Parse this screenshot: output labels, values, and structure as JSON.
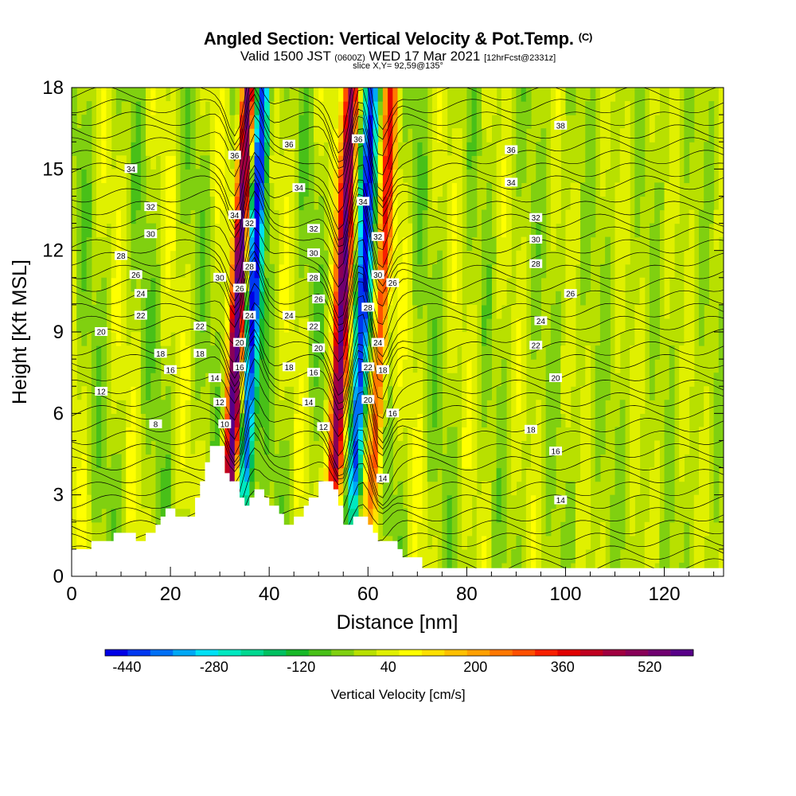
{
  "header": {
    "title": "Angled Section: Vertical Velocity & Pot.Temp.",
    "title_suffix": "(C)",
    "valid_prefix": "Valid 1500 JST",
    "valid_zulu": "(0600Z)",
    "valid_date": "WED 17 Mar 2021",
    "forecast": "[12hrFcst@2331z]",
    "slice": "slice X,Y= 92,59@135°"
  },
  "chart_data": {
    "type": "heatmap",
    "xlabel": "Distance [nm]",
    "ylabel": "Height [Kft MSL]",
    "xlim": [
      0,
      132
    ],
    "ylim": [
      0,
      18
    ],
    "x_ticks": [
      0,
      20,
      40,
      60,
      80,
      100,
      120
    ],
    "y_ticks": [
      0,
      3,
      6,
      9,
      12,
      15,
      18
    ],
    "colorbar": {
      "label": "Vertical Velocity [cm/s]",
      "range": [
        -480,
        600
      ],
      "tick_labels": [
        -440,
        -280,
        -120,
        40,
        200,
        360,
        520
      ],
      "colors": [
        "#0000e6",
        "#0038f0",
        "#0070f5",
        "#00a8f5",
        "#00e0f5",
        "#00e8c0",
        "#00d890",
        "#00c060",
        "#18b828",
        "#48c018",
        "#80d010",
        "#b8e000",
        "#e0f000",
        "#ffff00",
        "#ffe000",
        "#ffc000",
        "#ffa000",
        "#ff7800",
        "#ff5000",
        "#f82000",
        "#e00000",
        "#c00020",
        "#a00040",
        "#880058",
        "#700070",
        "#580088"
      ]
    },
    "updraft_cores_nm": [
      33.5,
      54.5,
      62.5
    ],
    "downdraft_cores_nm": [
      36.5,
      58.5
    ],
    "terrain_height_kft": [
      [
        0,
        1.0
      ],
      [
        4,
        1.0
      ],
      [
        4,
        1.3
      ],
      [
        8.5,
        1.3
      ],
      [
        8.5,
        1.6
      ],
      [
        13,
        1.6
      ],
      [
        13,
        1.3
      ],
      [
        15,
        1.3
      ],
      [
        15,
        1.6
      ],
      [
        17,
        1.6
      ],
      [
        17,
        1.9
      ],
      [
        18,
        1.9
      ],
      [
        18,
        2.2
      ],
      [
        19,
        2.2
      ],
      [
        19,
        2.5
      ],
      [
        21,
        2.5
      ],
      [
        21,
        2.2
      ],
      [
        25,
        2.2
      ],
      [
        25,
        2.9
      ],
      [
        26,
        2.9
      ],
      [
        26,
        3.5
      ],
      [
        27,
        3.5
      ],
      [
        27,
        4.2
      ],
      [
        28,
        4.2
      ],
      [
        28,
        4.8
      ],
      [
        31,
        4.8
      ],
      [
        31,
        3.8
      ],
      [
        32,
        3.8
      ],
      [
        32,
        3.5
      ],
      [
        34,
        3.5
      ],
      [
        34,
        2.9
      ],
      [
        35,
        2.9
      ],
      [
        35,
        2.6
      ],
      [
        36,
        2.6
      ],
      [
        36,
        2.9
      ],
      [
        37,
        2.9
      ],
      [
        37,
        3.2
      ],
      [
        39,
        3.2
      ],
      [
        39,
        2.9
      ],
      [
        40,
        2.9
      ],
      [
        40,
        2.6
      ],
      [
        42,
        2.6
      ],
      [
        42,
        2.3
      ],
      [
        43,
        2.3
      ],
      [
        43,
        1.9
      ],
      [
        45,
        1.9
      ],
      [
        45,
        2.2
      ],
      [
        47,
        2.2
      ],
      [
        47,
        2.6
      ],
      [
        48,
        2.6
      ],
      [
        48,
        2.9
      ],
      [
        50,
        2.9
      ],
      [
        50,
        3.5
      ],
      [
        53,
        3.5
      ],
      [
        53,
        3.2
      ],
      [
        54,
        3.2
      ],
      [
        54,
        2.6
      ],
      [
        55,
        2.6
      ],
      [
        55,
        1.9
      ],
      [
        57,
        1.9
      ],
      [
        57,
        2.2
      ],
      [
        60,
        2.2
      ],
      [
        60,
        1.9
      ],
      [
        61,
        1.9
      ],
      [
        61,
        1.6
      ],
      [
        62,
        1.6
      ],
      [
        62,
        1.3
      ],
      [
        66,
        1.3
      ],
      [
        66,
        1.0
      ],
      [
        67,
        1.0
      ],
      [
        67,
        0.7
      ],
      [
        71,
        0.7
      ],
      [
        71,
        0.3
      ],
      [
        132,
        0.3
      ]
    ],
    "isentrope_labels": [
      {
        "text": "34",
        "x": 12,
        "y": 15.0
      },
      {
        "text": "32",
        "x": 16,
        "y": 13.6
      },
      {
        "text": "30",
        "x": 16,
        "y": 12.6
      },
      {
        "text": "28",
        "x": 10,
        "y": 11.8
      },
      {
        "text": "26",
        "x": 13,
        "y": 11.1
      },
      {
        "text": "24",
        "x": 14,
        "y": 10.4
      },
      {
        "text": "22",
        "x": 14,
        "y": 9.6
      },
      {
        "text": "20",
        "x": 6,
        "y": 9.0
      },
      {
        "text": "18",
        "x": 18,
        "y": 8.2
      },
      {
        "text": "16",
        "x": 20,
        "y": 7.6
      },
      {
        "text": "12",
        "x": 6,
        "y": 6.8
      },
      {
        "text": "8",
        "x": 17,
        "y": 5.6
      },
      {
        "text": "36",
        "x": 33,
        "y": 15.5
      },
      {
        "text": "34",
        "x": 33,
        "y": 13.3
      },
      {
        "text": "32",
        "x": 36,
        "y": 13.0
      },
      {
        "text": "30",
        "x": 30,
        "y": 11.0
      },
      {
        "text": "28",
        "x": 36,
        "y": 11.4
      },
      {
        "text": "26",
        "x": 34,
        "y": 10.6
      },
      {
        "text": "24",
        "x": 36,
        "y": 9.6
      },
      {
        "text": "22",
        "x": 26,
        "y": 9.2
      },
      {
        "text": "20",
        "x": 34,
        "y": 8.6
      },
      {
        "text": "18",
        "x": 26,
        "y": 8.2
      },
      {
        "text": "16",
        "x": 34,
        "y": 7.7
      },
      {
        "text": "14",
        "x": 29,
        "y": 7.3
      },
      {
        "text": "12",
        "x": 30,
        "y": 6.4
      },
      {
        "text": "10",
        "x": 31,
        "y": 5.6
      },
      {
        "text": "36",
        "x": 44,
        "y": 15.9
      },
      {
        "text": "34",
        "x": 46,
        "y": 14.3
      },
      {
        "text": "32",
        "x": 49,
        "y": 12.8
      },
      {
        "text": "30",
        "x": 49,
        "y": 11.9
      },
      {
        "text": "28",
        "x": 49,
        "y": 11.0
      },
      {
        "text": "26",
        "x": 50,
        "y": 10.2
      },
      {
        "text": "24",
        "x": 44,
        "y": 9.6
      },
      {
        "text": "22",
        "x": 49,
        "y": 9.2
      },
      {
        "text": "20",
        "x": 50,
        "y": 8.4
      },
      {
        "text": "18",
        "x": 44,
        "y": 7.7
      },
      {
        "text": "16",
        "x": 49,
        "y": 7.5
      },
      {
        "text": "14",
        "x": 48,
        "y": 6.4
      },
      {
        "text": "12",
        "x": 51,
        "y": 5.5
      },
      {
        "text": "36",
        "x": 58,
        "y": 16.1
      },
      {
        "text": "34",
        "x": 59,
        "y": 13.8
      },
      {
        "text": "32",
        "x": 62,
        "y": 12.5
      },
      {
        "text": "30",
        "x": 62,
        "y": 11.1
      },
      {
        "text": "28",
        "x": 60,
        "y": 9.9
      },
      {
        "text": "26",
        "x": 65,
        "y": 10.8
      },
      {
        "text": "24",
        "x": 62,
        "y": 8.6
      },
      {
        "text": "22",
        "x": 60,
        "y": 7.7
      },
      {
        "text": "20",
        "x": 60,
        "y": 6.5
      },
      {
        "text": "18",
        "x": 63,
        "y": 7.6
      },
      {
        "text": "16",
        "x": 65,
        "y": 6.0
      },
      {
        "text": "14",
        "x": 63,
        "y": 3.6
      },
      {
        "text": "38",
        "x": 99,
        "y": 16.6
      },
      {
        "text": "36",
        "x": 89,
        "y": 15.7
      },
      {
        "text": "34",
        "x": 89,
        "y": 14.5
      },
      {
        "text": "32",
        "x": 94,
        "y": 13.2
      },
      {
        "text": "30",
        "x": 94,
        "y": 12.4
      },
      {
        "text": "28",
        "x": 94,
        "y": 11.5
      },
      {
        "text": "26",
        "x": 101,
        "y": 10.4
      },
      {
        "text": "24",
        "x": 95,
        "y": 9.4
      },
      {
        "text": "22",
        "x": 94,
        "y": 8.5
      },
      {
        "text": "20",
        "x": 98,
        "y": 7.3
      },
      {
        "text": "18",
        "x": 93,
        "y": 5.4
      },
      {
        "text": "16",
        "x": 98,
        "y": 4.6
      },
      {
        "text": "14",
        "x": 99,
        "y": 2.8
      }
    ]
  }
}
